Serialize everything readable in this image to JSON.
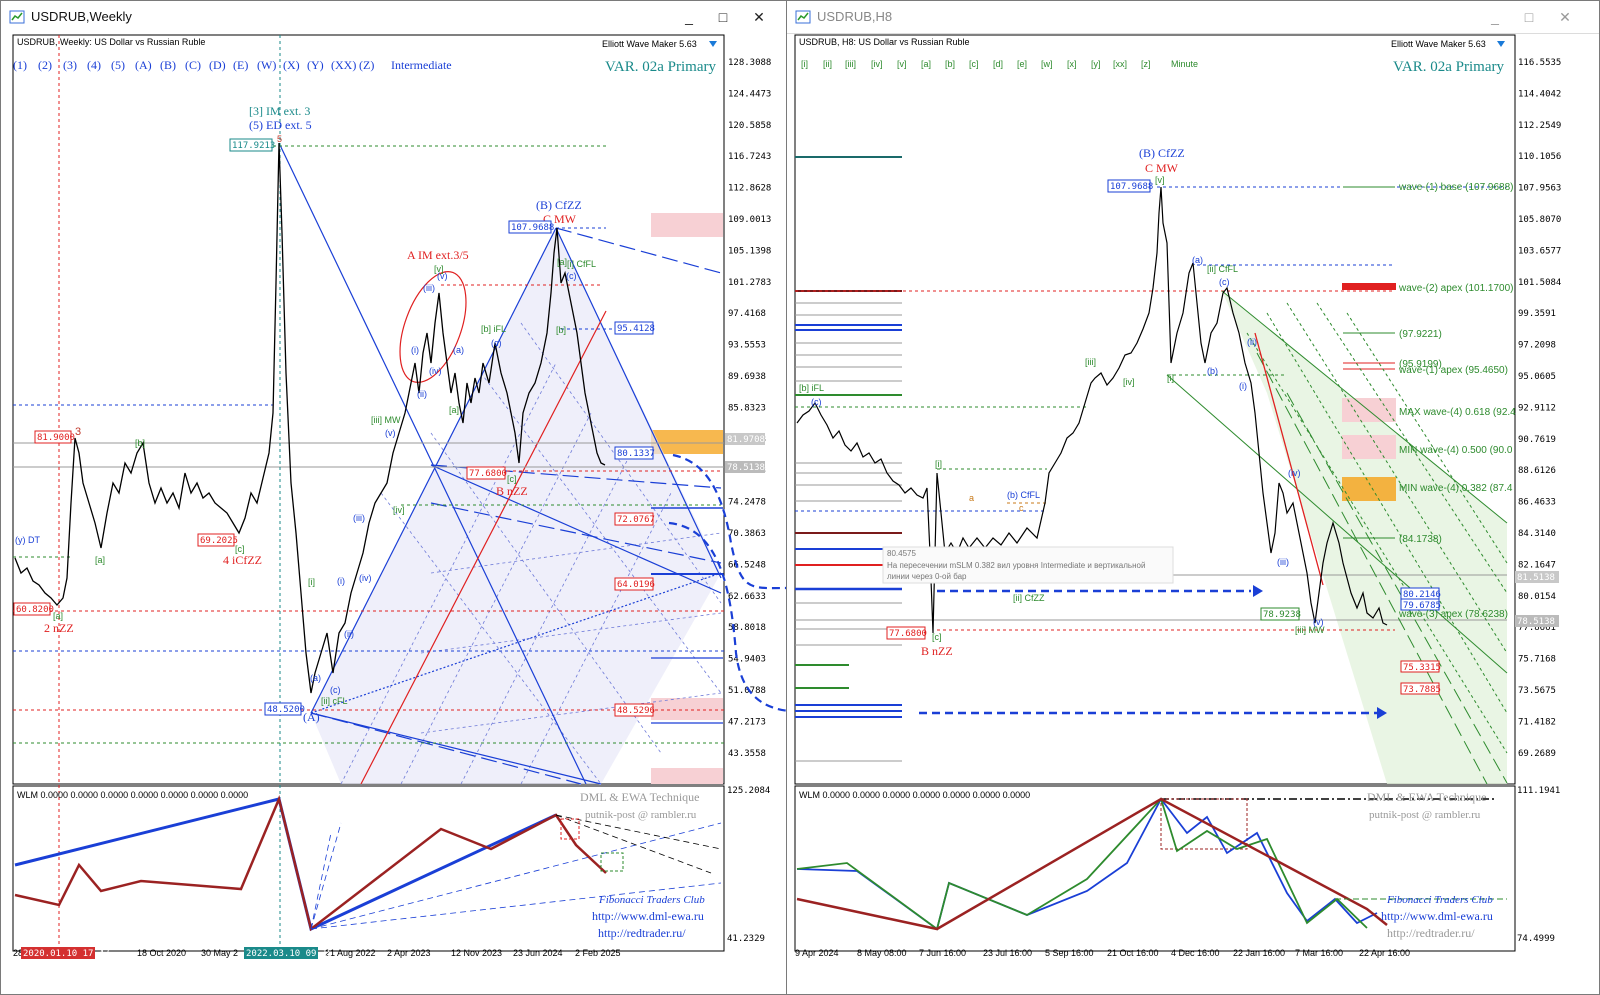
{
  "left_window": {
    "title": "USDRUB,Weekly",
    "buttons": {
      "minimize": "_",
      "maximize": "□",
      "close": "✕"
    },
    "header": "USDRUB, Weekly:  US Dollar vs Russian Ruble",
    "plugin": "Elliott Wave Maker 5.63",
    "wave_buttons": [
      "(1)",
      "(2)",
      "(3)",
      "(4)",
      "(5)",
      "(A)",
      "(B)",
      "(C)",
      "(D)",
      "(E)",
      "(W)",
      "(X)",
      "(Y)",
      "(XX)",
      "(Z)"
    ],
    "degree": "Intermediate",
    "variant": "VAR. 02a Primary",
    "price_axis": [
      "128.3088",
      "124.4473",
      "120.5858",
      "116.7243",
      "112.8628",
      "109.0013",
      "105.1398",
      "101.2783",
      "97.4168",
      "93.5553",
      "89.6938",
      "85.8323",
      "81.9708",
      "78.1093",
      "74.2478",
      "70.3863",
      "66.5248",
      "62.6633",
      "58.8018",
      "54.9403",
      "51.0788",
      "47.2173",
      "43.3558"
    ],
    "current_price": "78.5138",
    "time_axis": [
      "28 ",
      "2020",
      "18 Oct 2020",
      "30 May 2",
      "21 Aug 2022",
      "2 Apr 2023",
      "12 Nov 2023",
      "23 Jun 2024",
      "2 Feb 2025"
    ],
    "time_marker_1": "2020.01.10 17:47",
    "time_marker_2": "2022.03.10 09:15",
    "price_labels": [
      "117.9213",
      "81.9000",
      "69.2025",
      "60.8200",
      "48.5200",
      "107.9688",
      "95.4128",
      "80.1337",
      "77.6800",
      "72.0767",
      "64.0196",
      "48.5296"
    ],
    "wave_labels": [
      "[3] IM ext. 3",
      "(5) ED ext. 5",
      "A IM ext.3/5",
      "(B) CfZZ",
      "C MW",
      "B nZZ",
      "4 iCfZZ",
      "2 nZZ",
      "[b] iFL",
      "[iii] MW",
      "[ii] cFL",
      "[i] CfFL",
      "3",
      "5",
      "(A)",
      "(y) DT"
    ],
    "indicator": {
      "name": "WLM 0.0000 0.0000 0.0000 0.0000 0.0000 0.0000 0.0000",
      "axis_top": "125.2084",
      "axis_bottom": "41.2329",
      "brand1": "DML & EWA Technique",
      "brand2": "putnik-post @ rambler.ru",
      "brand3": "Fibonacci  Traders  Club",
      "url1": "http://www.dml-ewa.ru",
      "url2": "http://redtrader.ru/"
    }
  },
  "right_window": {
    "title": "USDRUB,H8",
    "buttons": {
      "minimize": "_",
      "maximize": "□",
      "close": "✕"
    },
    "header": "USDRUB, H8:  US Dollar vs Russian Ruble",
    "plugin": "Elliott Wave Maker 5.63",
    "wave_buttons": [
      "[i]",
      "[ii]",
      "[iii]",
      "[iv]",
      "[v]",
      "[a]",
      "[b]",
      "[c]",
      "[d]",
      "[e]",
      "[w]",
      "[x]",
      "[y]",
      "[xx]",
      "[z]"
    ],
    "degree": "Minute",
    "variant": "VAR. 02a Primary",
    "price_axis": [
      "116.5535",
      "114.4042",
      "112.2549",
      "110.1056",
      "107.9563",
      "105.8070",
      "103.6577",
      "101.5084",
      "99.3591",
      "97.2098",
      "95.0605",
      "92.9112",
      "90.7619",
      "88.6126",
      "86.4633",
      "84.3140",
      "82.1647",
      "80.0154",
      "77.8661",
      "75.7168",
      "73.5675",
      "71.4182",
      "69.2689"
    ],
    "current_price": "78.5138",
    "price_81": "81.5138",
    "time_axis": [
      "9 Apr 2024",
      "8 May 08:00",
      "7 Jun 16:00",
      "23 Jul 16:00",
      "5 Sep 16:00",
      "21 Oct 16:00",
      "4 Dec 16:00",
      "22 Jan 16:00",
      "7 Mar 16:00",
      "22 Apr 16:00"
    ],
    "price_labels": [
      "107.9688",
      "77.6800",
      "78.9238",
      "80.2146",
      "79.6785",
      "75.3315",
      "73.7885"
    ],
    "level_labels": [
      "wave-(1) base (107.9688)",
      "wave-(2) apex (101.1700)",
      "(97.9221)",
      "(95.9199)",
      "wave-(1) apex (95.4650)",
      "MAX wave-(4) 0.618 (92.4",
      "MIN wave-(4) 0.500 (90.0",
      "MIN wave-(4) 0.382 (87.4",
      "(84.1738)",
      "wave-(3) apex (78.6238)"
    ],
    "wave_labels": [
      "(B) CfZZ",
      "C MW",
      "B nZZ",
      "[b] iFL",
      "(b) CfFL",
      "[ii] CfZZ",
      "[ii] CfFL",
      "[iii] MW",
      "[iii]",
      "[iv]"
    ],
    "tooltip_value": "80.4575",
    "tooltip_text_1": "На пересечении mSLM 0.382 вил уровня Intermediate и вертикальной",
    "tooltip_text_2": "линии через 0-ой бар",
    "indicator": {
      "name": "WLM 0.0000 0.0000 0.0000 0.0000 0.0000 0.0000 0.0000",
      "axis_top": "111.1941",
      "axis_bottom": "74.4999",
      "brand1": "DML & EWA Technique",
      "brand2": "putnik-post @ rambler.ru",
      "brand3": "Fibonacci  Traders  Club",
      "url1": "http://www.dml-ewa.ru",
      "url2": "http://redtrader.ru/"
    }
  },
  "colors": {
    "accent": "#1a3fd6",
    "bearish": "#e02020",
    "wave_green": "#2e8b2e",
    "variant_teal": "#1a8a8a",
    "orange_zone": "#f5a623",
    "pink_zone": "#f7d0d4"
  }
}
